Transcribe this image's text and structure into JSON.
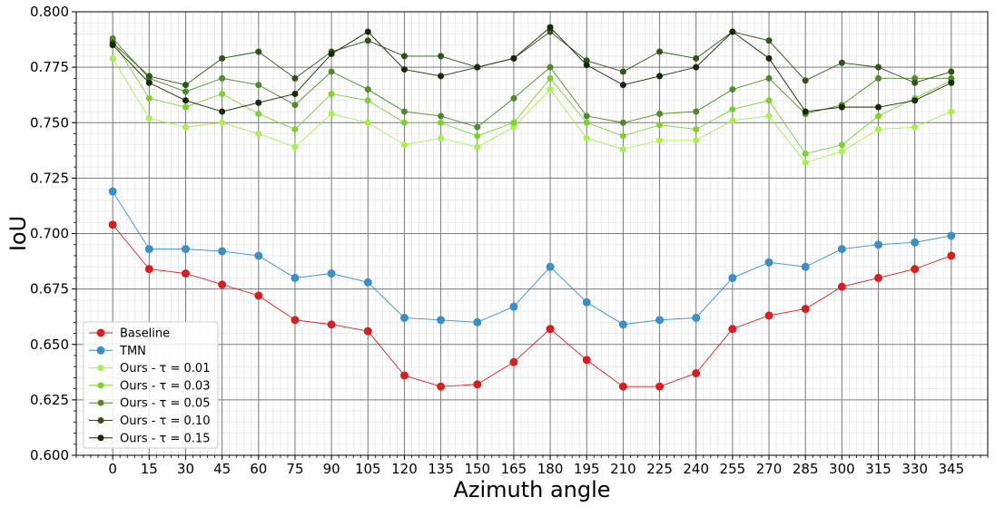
{
  "chart_data": {
    "type": "line",
    "title": "",
    "xlabel": "Azimuth angle",
    "ylabel": "IoU",
    "x": [
      0,
      15,
      30,
      45,
      60,
      75,
      90,
      105,
      120,
      135,
      150,
      165,
      180,
      195,
      210,
      225,
      240,
      255,
      270,
      285,
      300,
      315,
      330,
      345
    ],
    "x_tick_labels": [
      "0",
      "15",
      "30",
      "45",
      "60",
      "75",
      "90",
      "105",
      "120",
      "135",
      "150",
      "165",
      "180",
      "195",
      "210",
      "225",
      "240",
      "255",
      "270",
      "285",
      "300",
      "315",
      "330",
      "345"
    ],
    "xlim": [
      -15,
      360
    ],
    "ylim": [
      0.6,
      0.8
    ],
    "y_ticks": [
      0.6,
      0.625,
      0.65,
      0.675,
      0.7,
      0.725,
      0.75,
      0.775,
      0.8
    ],
    "y_tick_labels": [
      "0.600",
      "0.625",
      "0.650",
      "0.675",
      "0.700",
      "0.725",
      "0.750",
      "0.775",
      "0.800"
    ],
    "grid": true,
    "minor_grid": true,
    "legend_position": "lower-left",
    "series": [
      {
        "name": "Baseline",
        "color": "#d62020",
        "marker_size": "large",
        "values": [
          0.704,
          0.684,
          0.682,
          0.677,
          0.672,
          0.661,
          0.659,
          0.656,
          0.636,
          0.631,
          0.632,
          0.642,
          0.657,
          0.643,
          0.631,
          0.631,
          0.637,
          0.657,
          0.663,
          0.666,
          0.676,
          0.68,
          0.684,
          0.69
        ]
      },
      {
        "name": "TMN",
        "color": "#3a8fc8",
        "marker_size": "large",
        "values": [
          0.719,
          0.693,
          0.693,
          0.692,
          0.69,
          0.68,
          0.682,
          0.678,
          0.662,
          0.661,
          0.66,
          0.667,
          0.685,
          0.669,
          0.659,
          0.661,
          0.662,
          0.68,
          0.687,
          0.685,
          0.693,
          0.695,
          0.696,
          0.699
        ]
      },
      {
        "name": "Ours - τ = 0.01",
        "color": "#a6f050",
        "marker_size": "small",
        "values": [
          0.779,
          0.752,
          0.748,
          0.75,
          0.745,
          0.739,
          0.754,
          0.75,
          0.74,
          0.743,
          0.739,
          0.748,
          0.765,
          0.743,
          0.738,
          0.742,
          0.742,
          0.751,
          0.753,
          0.732,
          0.737,
          0.747,
          0.748,
          0.755
        ]
      },
      {
        "name": "Ours - τ = 0.03",
        "color": "#7ed030",
        "marker_size": "small",
        "values": [
          0.787,
          0.761,
          0.757,
          0.763,
          0.754,
          0.747,
          0.763,
          0.76,
          0.75,
          0.75,
          0.744,
          0.75,
          0.77,
          0.75,
          0.744,
          0.749,
          0.747,
          0.756,
          0.76,
          0.736,
          0.74,
          0.753,
          0.761,
          0.769
        ]
      },
      {
        "name": "Ours - τ = 0.05",
        "color": "#4e8a2a",
        "marker_size": "small",
        "values": [
          0.788,
          0.77,
          0.764,
          0.77,
          0.767,
          0.758,
          0.773,
          0.765,
          0.755,
          0.753,
          0.748,
          0.761,
          0.775,
          0.753,
          0.75,
          0.754,
          0.755,
          0.765,
          0.77,
          0.754,
          0.758,
          0.77,
          0.77,
          0.77
        ]
      },
      {
        "name": "Ours - τ = 0.10",
        "color": "#2e5418",
        "marker_size": "small",
        "values": [
          0.786,
          0.771,
          0.767,
          0.779,
          0.782,
          0.77,
          0.782,
          0.787,
          0.78,
          0.78,
          0.775,
          0.779,
          0.791,
          0.778,
          0.773,
          0.782,
          0.779,
          0.791,
          0.787,
          0.769,
          0.777,
          0.775,
          0.768,
          0.773
        ]
      },
      {
        "name": "Ours - τ = 0.15",
        "color": "#152a08",
        "marker_size": "small",
        "values": [
          0.785,
          0.768,
          0.76,
          0.755,
          0.759,
          0.763,
          0.781,
          0.791,
          0.774,
          0.771,
          0.775,
          0.779,
          0.793,
          0.776,
          0.767,
          0.771,
          0.775,
          0.791,
          0.779,
          0.755,
          0.757,
          0.757,
          0.76,
          0.768
        ]
      }
    ]
  }
}
